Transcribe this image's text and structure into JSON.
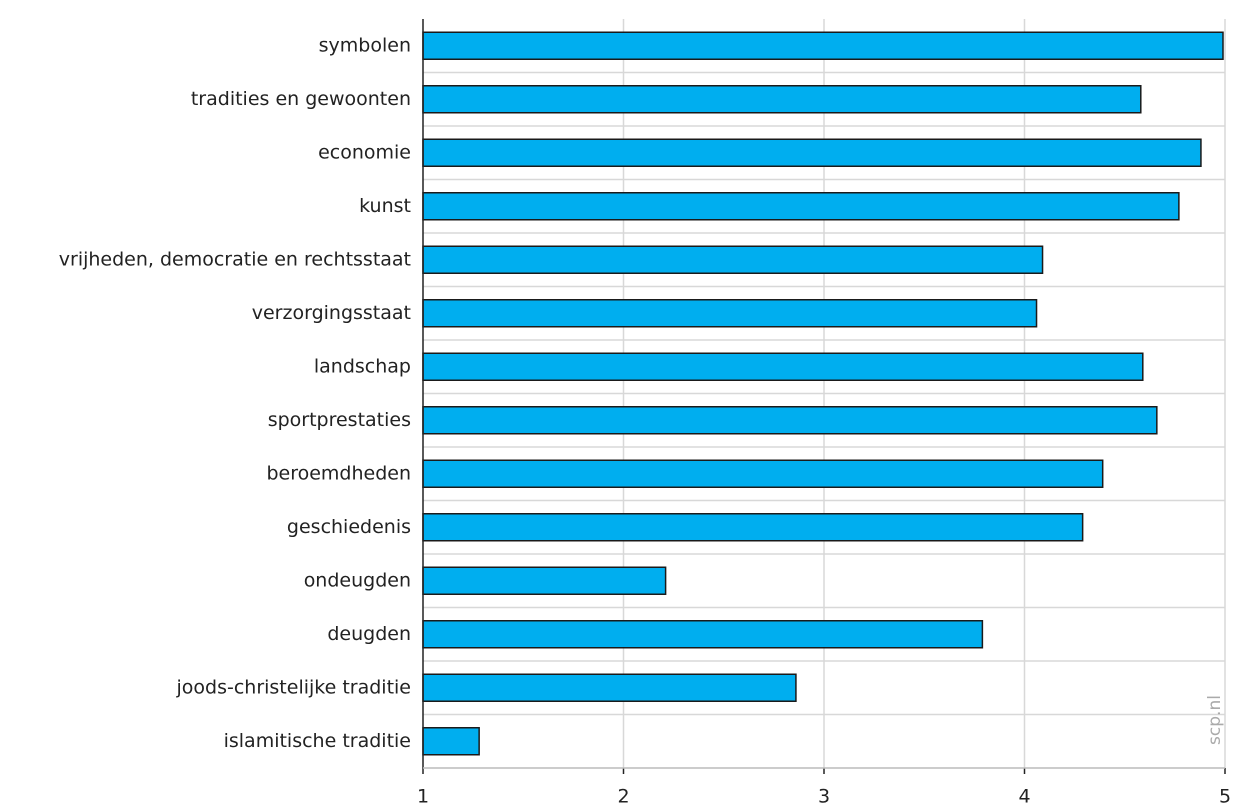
{
  "chart_data": {
    "type": "bar",
    "orientation": "horizontal",
    "categories": [
      "symbolen",
      "tradities en gewoonten",
      "economie",
      "kunst",
      "vrijheden, democratie en rechtsstaat",
      "verzorgingsstaat",
      "landschap",
      "sportprestaties",
      "beroemdheden",
      "geschiedenis",
      "ondeugden",
      "deugden",
      "joods-christelijke traditie",
      "islamitische traditie"
    ],
    "values": [
      4.99,
      4.58,
      4.88,
      4.77,
      4.09,
      4.06,
      4.59,
      4.66,
      4.39,
      4.29,
      2.21,
      3.79,
      2.86,
      1.28
    ],
    "color": "#00aeef",
    "xlim": [
      1,
      5
    ],
    "xticks": [
      1,
      2,
      3,
      4,
      5
    ],
    "grid": true,
    "watermark": "scp.nl"
  }
}
